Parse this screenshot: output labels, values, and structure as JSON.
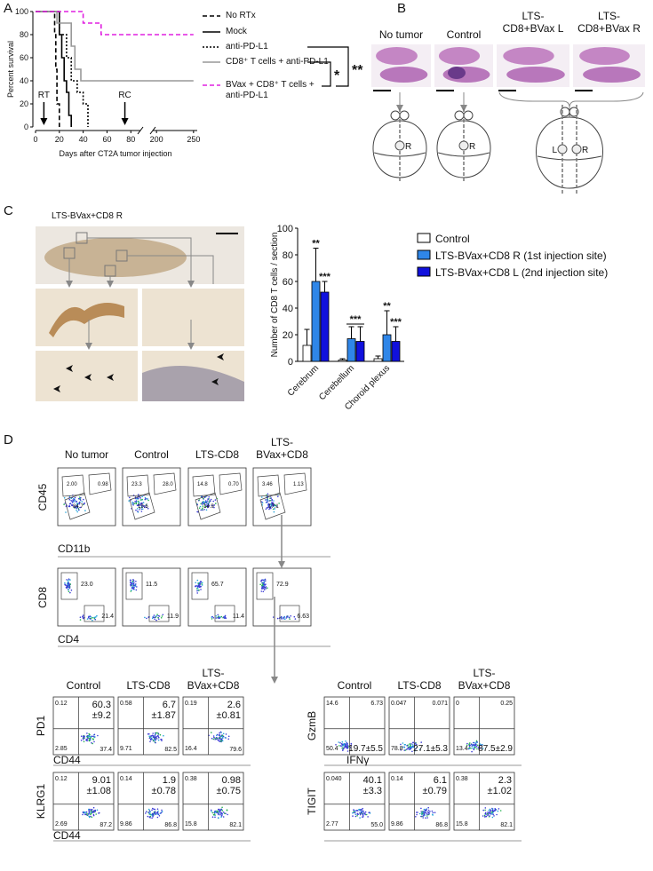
{
  "panel_a": {
    "label": "A",
    "type": "line",
    "ylabel": "Percent survival",
    "xlabel": "Days after CT2A tumor injection",
    "ylim": [
      0,
      100
    ],
    "yticks": [
      0,
      20,
      40,
      60,
      80,
      100
    ],
    "x_segments": [
      [
        0,
        88
      ],
      [
        195,
        255
      ]
    ],
    "xticks": [
      0,
      20,
      40,
      60,
      80,
      200,
      250
    ],
    "series": [
      {
        "name": "No RTx",
        "color": "#000000",
        "line_style": "dashed",
        "x": [
          0,
          16,
          16,
          17,
          17,
          18,
          18,
          20,
          20
        ],
        "values": [
          100,
          100,
          80,
          80,
          50,
          50,
          20,
          20,
          0
        ]
      },
      {
        "name": "Mock",
        "color": "#000000",
        "line_style": "solid",
        "x": [
          0,
          20,
          20,
          22,
          22,
          24,
          24,
          26,
          26,
          28,
          28,
          30,
          30
        ],
        "values": [
          100,
          100,
          80,
          80,
          60,
          60,
          40,
          40,
          30,
          30,
          10,
          10,
          0
        ]
      },
      {
        "name": "anti-PD-L1",
        "color": "#000000",
        "line_style": "dotted",
        "x": [
          0,
          20,
          20,
          26,
          26,
          30,
          30,
          35,
          35,
          40,
          40,
          44,
          44
        ],
        "values": [
          100,
          100,
          80,
          80,
          60,
          60,
          40,
          40,
          30,
          30,
          20,
          20,
          0
        ]
      },
      {
        "name": "CD8⁺ T cells + anti-PD-L1",
        "color": "#999999",
        "line_style": "solid",
        "x": [
          0,
          18,
          18,
          30,
          30,
          33,
          33,
          38,
          38,
          250
        ],
        "values": [
          100,
          100,
          90,
          90,
          70,
          70,
          50,
          50,
          40,
          40
        ]
      },
      {
        "name": "BVax + CD8⁺ T cells + anti-PD-L1",
        "color": "#e020e0",
        "line_style": "dashed",
        "x": [
          0,
          40,
          40,
          55,
          55,
          250
        ],
        "values": [
          100,
          100,
          90,
          90,
          80,
          80
        ]
      }
    ],
    "annotations": [
      {
        "text": "RT",
        "x": 7
      },
      {
        "text": "RC",
        "x": 75
      }
    ],
    "significance": [
      "*",
      "**"
    ]
  },
  "panel_b": {
    "label": "B",
    "images": [
      {
        "title": [
          "No tumor"
        ]
      },
      {
        "title": [
          "Control"
        ]
      },
      {
        "title": [
          "LTS-",
          "CD8+BVax L"
        ]
      },
      {
        "title": [
          "LTS-",
          "CD8+BVax R"
        ]
      }
    ],
    "brains": [
      {
        "marks": [
          "R"
        ]
      },
      {
        "marks": [
          "R"
        ]
      },
      {
        "marks": [
          "L",
          "R"
        ]
      }
    ]
  },
  "panel_c": {
    "label": "C",
    "image_title": "LTS-BVax+CD8 R",
    "chart": {
      "type": "bar",
      "ylabel": "Number of CD8 T cells / section",
      "categories": [
        "Cerebrum",
        "Cerebellum",
        "Choroid plexus"
      ],
      "ylim": [
        0,
        100
      ],
      "yticks": [
        0,
        20,
        40,
        60,
        80,
        100
      ],
      "series": [
        {
          "name": "Control",
          "color": "#ffffff",
          "values": [
            12,
            1,
            2
          ],
          "errors": [
            12,
            1,
            2
          ],
          "significance": [
            null,
            null,
            null
          ]
        },
        {
          "name": "LTS-BVax+CD8  R (1st injection site)",
          "color": "#2f86e8",
          "values": [
            60,
            17,
            20
          ],
          "errors": [
            25,
            9,
            18
          ],
          "significance": [
            "**",
            null,
            "**"
          ]
        },
        {
          "name": "LTS-BVax+CD8 L (2nd injection site)",
          "color": "#1111dd",
          "values": [
            52,
            15,
            15
          ],
          "errors": [
            8,
            11,
            11
          ],
          "significance": [
            "***",
            null,
            "***"
          ]
        }
      ],
      "group_significance": [
        null,
        "***",
        null
      ]
    }
  },
  "panel_d": {
    "label": "D",
    "row1": {
      "headers": [
        [
          "No tumor"
        ],
        [
          "Control"
        ],
        [
          "LTS-CD8"
        ],
        [
          "LTS-",
          "BVax+CD8"
        ]
      ],
      "ylabel": "CD45",
      "xlabel": "CD11b",
      "gates": [
        [
          "2.00",
          "0.98",
          "84.7"
        ],
        [
          "23.3",
          "28.0",
          "19.6"
        ],
        [
          "14.8",
          "0.70",
          "14.9"
        ],
        [
          "3.46",
          "1.13",
          "17.1"
        ]
      ]
    },
    "row2": {
      "ylabel": "CD8",
      "xlabel": "CD4",
      "gates": [
        [
          "23.0",
          "21.4"
        ],
        [
          "11.5",
          "11.9"
        ],
        [
          "65.7",
          "11.4"
        ],
        [
          "72.9",
          "6.63"
        ]
      ]
    },
    "lower": {
      "headers": [
        [
          "Control"
        ],
        [
          "LTS-CD8"
        ],
        [
          "LTS-",
          "BVax+CD8"
        ]
      ],
      "left": [
        {
          "ylabel": "PD1",
          "xlabel": "CD44",
          "quadrants": [
            {
              "q1": "0.12",
              "q2": [
                "60.3",
                "±9.2"
              ],
              "q3": "2.85",
              "q4": "37.4"
            },
            {
              "q1": "0.58",
              "q2": [
                "6.7",
                "±1.87"
              ],
              "q3": "9.71",
              "q4": "82.5"
            },
            {
              "q1": "0.19",
              "q2": [
                "2.6",
                "±0.81"
              ],
              "q3": "16.4",
              "q4": "79.6"
            }
          ]
        },
        {
          "ylabel": "KLRG1",
          "xlabel": "CD44",
          "quadrants": [
            {
              "q1": "0.12",
              "q2": [
                "9.01",
                "±1.08"
              ],
              "q3": "2.69",
              "q4": "87.2"
            },
            {
              "q1": "0.14",
              "q2": [
                "1.9",
                "±0.78"
              ],
              "q3": "9.86",
              "q4": "86.8"
            },
            {
              "q1": "0.38",
              "q2": [
                "0.98",
                "±0.75"
              ],
              "q3": "15.8",
              "q4": "82.1"
            }
          ]
        }
      ],
      "right": [
        {
          "ylabel": "GzmB",
          "xlabel": "IFNγ",
          "quadrants": [
            {
              "q1": "14.6",
              "q2": "6.73",
              "q3": "50.4",
              "q4": "19.7±5.5"
            },
            {
              "q1": "0.047",
              "q2": "0.071",
              "q3": "78.8",
              "q4": "27.1±5.3"
            },
            {
              "q1": "0",
              "q2": "0.25",
              "q3": "13.4",
              "q4": "87.5±2.9"
            }
          ]
        },
        {
          "ylabel": "TIGIT",
          "quadrants": [
            {
              "q1": "0.040",
              "q2": [
                "40.1",
                "±3.3"
              ],
              "q3": "2.77",
              "q4": "55.0"
            },
            {
              "q1": "0.14",
              "q2": [
                "6.1",
                "±0.79"
              ],
              "q3": "9.86",
              "q4": "86.8"
            },
            {
              "q1": "0.38",
              "q2": [
                "2.3",
                "±1.02"
              ],
              "q3": "15.8",
              "q4": "82.1"
            }
          ]
        }
      ]
    }
  }
}
